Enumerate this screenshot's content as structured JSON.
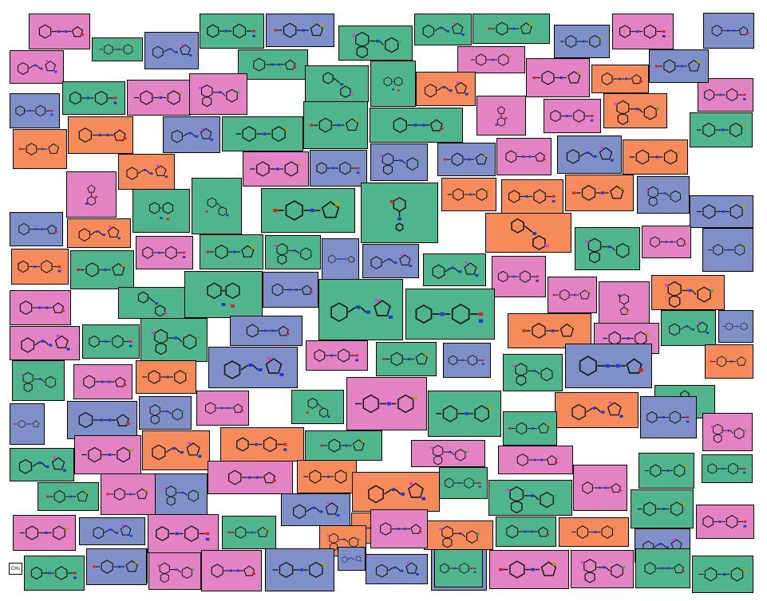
{
  "palette": {
    "pink": "#e383c4",
    "green": "#4fb58c",
    "blue": "#7f8fc8",
    "orange": "#f58a5b"
  },
  "marker_label": "CH₃",
  "tiles": [
    {
      "c": "pink",
      "t": 0,
      "o": "h"
    },
    {
      "c": "green",
      "t": 1,
      "o": "h"
    },
    {
      "c": "blue",
      "t": 2,
      "o": "h"
    },
    {
      "c": "green",
      "t": 3,
      "o": "h"
    },
    {
      "c": "blue",
      "t": 4,
      "o": "h"
    },
    {
      "c": "green",
      "t": 5,
      "o": "h"
    },
    {
      "c": "green",
      "t": 2,
      "o": "h"
    },
    {
      "c": "green",
      "t": 4,
      "o": "h"
    },
    {
      "c": "blue",
      "t": 1,
      "o": "h"
    },
    {
      "c": "pink",
      "t": 3,
      "o": "h"
    },
    {
      "c": "blue",
      "t": 0,
      "o": "h"
    },
    {
      "c": "pink",
      "t": 2,
      "o": "h"
    },
    {
      "c": "green",
      "t": 0,
      "o": "h"
    },
    {
      "c": "pink",
      "t": 1,
      "o": "h"
    },
    {
      "c": "pink",
      "t": 4,
      "o": "h"
    },
    {
      "c": "pink",
      "t": 3,
      "o": "h"
    },
    {
      "c": "green",
      "t": 5,
      "o": "v"
    },
    {
      "c": "green",
      "t": 1,
      "o": "v"
    },
    {
      "c": "orange",
      "t": 2,
      "o": "h"
    },
    {
      "c": "green",
      "t": 3,
      "o": "h"
    },
    {
      "c": "orange",
      "t": 0,
      "o": "h"
    },
    {
      "c": "blue",
      "t": 4,
      "o": "h"
    },
    {
      "c": "pink",
      "t": 1,
      "o": "h"
    },
    {
      "c": "blue",
      "t": 3,
      "o": "h"
    },
    {
      "c": "pink",
      "t": 5,
      "o": "h"
    },
    {
      "c": "blue",
      "t": 2,
      "o": "h"
    },
    {
      "c": "green",
      "t": 1,
      "o": "h"
    },
    {
      "c": "green",
      "t": 4,
      "o": "h"
    },
    {
      "c": "green",
      "t": 0,
      "o": "h"
    },
    {
      "c": "pink",
      "t": 2,
      "o": "v"
    },
    {
      "c": "pink",
      "t": 3,
      "o": "h"
    },
    {
      "c": "orange",
      "t": 5,
      "o": "h"
    },
    {
      "c": "green",
      "t": 1,
      "o": "h"
    },
    {
      "c": "orange",
      "t": 4,
      "o": "h"
    },
    {
      "c": "orange",
      "t": 0,
      "o": "h"
    },
    {
      "c": "pink",
      "t": 2,
      "o": "v"
    },
    {
      "c": "pink",
      "t": 1,
      "o": "h"
    },
    {
      "c": "blue",
      "t": 3,
      "o": "h"
    },
    {
      "c": "blue",
      "t": 5,
      "o": "h"
    },
    {
      "c": "blue",
      "t": 4,
      "o": "h"
    },
    {
      "c": "pink",
      "t": 0,
      "o": "h"
    },
    {
      "c": "blue",
      "t": 2,
      "o": "h"
    },
    {
      "c": "orange",
      "t": 1,
      "o": "h"
    },
    {
      "c": "green",
      "t": 3,
      "o": "v"
    },
    {
      "c": "green",
      "t": 5,
      "o": "v"
    },
    {
      "c": "green",
      "t": 4,
      "o": "h"
    },
    {
      "c": "green",
      "t": 0,
      "o": "v"
    },
    {
      "c": "orange",
      "t": 2,
      "o": "h"
    },
    {
      "c": "orange",
      "t": 1,
      "o": "h"
    },
    {
      "c": "orange",
      "t": 3,
      "o": "h"
    },
    {
      "c": "orange",
      "t": 4,
      "o": "h"
    },
    {
      "c": "blue",
      "t": 5,
      "o": "h"
    },
    {
      "c": "blue",
      "t": 0,
      "o": "h"
    },
    {
      "c": "orange",
      "t": 2,
      "o": "h"
    },
    {
      "c": "blue",
      "t": 1,
      "o": "h"
    },
    {
      "c": "pink",
      "t": 3,
      "o": "h"
    },
    {
      "c": "green",
      "t": 4,
      "o": "h"
    },
    {
      "c": "green",
      "t": 5,
      "o": "h"
    },
    {
      "c": "blue",
      "t": 0,
      "o": "h"
    },
    {
      "c": "blue",
      "t": 2,
      "o": "h"
    },
    {
      "c": "orange",
      "t": 1,
      "o": "v"
    },
    {
      "c": "orange",
      "t": 3,
      "o": "h"
    },
    {
      "c": "green",
      "t": 4,
      "o": "h"
    },
    {
      "c": "green",
      "t": 5,
      "o": "h"
    },
    {
      "c": "pink",
      "t": 0,
      "o": "h"
    },
    {
      "c": "blue",
      "t": 1,
      "o": "h"
    },
    {
      "c": "green",
      "t": 2,
      "o": "h"
    },
    {
      "c": "pink",
      "t": 3,
      "o": "h"
    },
    {
      "c": "pink",
      "t": 4,
      "o": "h"
    },
    {
      "c": "green",
      "t": 5,
      "o": "v"
    },
    {
      "c": "blue",
      "t": 0,
      "o": "h"
    },
    {
      "c": "green",
      "t": 1,
      "o": "v"
    },
    {
      "c": "green",
      "t": 2,
      "o": "h"
    },
    {
      "c": "green",
      "t": 3,
      "o": "h"
    },
    {
      "c": "pink",
      "t": 4,
      "o": "v"
    },
    {
      "c": "orange",
      "t": 5,
      "o": "h"
    },
    {
      "c": "pink",
      "t": 0,
      "o": "h"
    },
    {
      "c": "blue",
      "t": 1,
      "o": "h"
    },
    {
      "c": "pink",
      "t": 2,
      "o": "h"
    },
    {
      "c": "green",
      "t": 3,
      "o": "h"
    },
    {
      "c": "orange",
      "t": 4,
      "o": "h"
    },
    {
      "c": "green",
      "t": 5,
      "o": "h"
    },
    {
      "c": "blue",
      "t": 0,
      "o": "h"
    },
    {
      "c": "pink",
      "t": 1,
      "o": "h"
    },
    {
      "c": "green",
      "t": 2,
      "o": "h"
    },
    {
      "c": "blue",
      "t": 3,
      "o": "h"
    },
    {
      "c": "orange",
      "t": 4,
      "o": "h"
    },
    {
      "c": "green",
      "t": 5,
      "o": "h"
    },
    {
      "c": "pink",
      "t": 0,
      "o": "h"
    },
    {
      "c": "orange",
      "t": 1,
      "o": "h"
    },
    {
      "c": "blue",
      "t": 2,
      "o": "h"
    },
    {
      "c": "pink",
      "t": 3,
      "o": "h"
    },
    {
      "c": "green",
      "t": 4,
      "o": "h"
    },
    {
      "c": "green",
      "t": 5,
      "o": "h"
    },
    {
      "c": "blue",
      "t": 0,
      "o": "h"
    },
    {
      "c": "pink",
      "t": 1,
      "o": "h"
    },
    {
      "c": "green",
      "t": 2,
      "o": "v"
    },
    {
      "c": "green",
      "t": 3,
      "o": "v"
    },
    {
      "c": "blue",
      "t": 4,
      "o": "h"
    },
    {
      "c": "blue",
      "t": 5,
      "o": "h"
    },
    {
      "c": "pink",
      "t": 0,
      "o": "h"
    },
    {
      "c": "green",
      "t": 1,
      "o": "h"
    },
    {
      "c": "orange",
      "t": 2,
      "o": "h"
    },
    {
      "c": "blue",
      "t": 3,
      "o": "h"
    },
    {
      "c": "green",
      "t": 4,
      "o": "h"
    },
    {
      "c": "pink",
      "t": 5,
      "o": "h"
    },
    {
      "c": "blue",
      "t": 0,
      "o": "h"
    },
    {
      "c": "pink",
      "t": 1,
      "o": "h"
    },
    {
      "c": "orange",
      "t": 2,
      "o": "h"
    },
    {
      "c": "orange",
      "t": 3,
      "o": "h"
    },
    {
      "c": "green",
      "t": 4,
      "o": "h"
    },
    {
      "c": "pink",
      "t": 5,
      "o": "h"
    },
    {
      "c": "pink",
      "t": 0,
      "o": "h"
    },
    {
      "c": "green",
      "t": 1,
      "o": "h"
    },
    {
      "c": "green",
      "t": 2,
      "o": "h"
    },
    {
      "c": "green",
      "t": 3,
      "o": "h"
    },
    {
      "c": "pink",
      "t": 4,
      "o": "h"
    },
    {
      "c": "blue",
      "t": 5,
      "o": "h"
    },
    {
      "c": "pink",
      "t": 0,
      "o": "h"
    },
    {
      "c": "orange",
      "t": 1,
      "o": "h"
    },
    {
      "c": "orange",
      "t": 2,
      "o": "h"
    },
    {
      "c": "green",
      "t": 3,
      "o": "h"
    },
    {
      "c": "green",
      "t": 4,
      "o": "h"
    },
    {
      "c": "green",
      "t": 5,
      "o": "h"
    },
    {
      "c": "pink",
      "t": 0,
      "o": "h"
    },
    {
      "c": "green",
      "t": 1,
      "o": "h"
    },
    {
      "c": "blue",
      "t": 2,
      "o": "h"
    },
    {
      "c": "pink",
      "t": 3,
      "o": "h"
    },
    {
      "c": "orange",
      "t": 4,
      "o": "h"
    },
    {
      "c": "orange",
      "t": 5,
      "o": "h"
    },
    {
      "c": "green",
      "t": 0,
      "o": "h"
    },
    {
      "c": "pink",
      "t": 1,
      "o": "h"
    },
    {
      "c": "blue",
      "t": 2,
      "o": "h"
    },
    {
      "c": "pink",
      "t": 3,
      "o": "h"
    },
    {
      "c": "green",
      "t": 4,
      "o": "h"
    },
    {
      "c": "orange",
      "t": 5,
      "o": "h"
    },
    {
      "c": "pink",
      "t": 0,
      "o": "h"
    },
    {
      "c": "orange",
      "t": 1,
      "o": "h"
    },
    {
      "c": "blue",
      "t": 2,
      "o": "h"
    },
    {
      "c": "green",
      "t": 3,
      "o": "h"
    },
    {
      "c": "pink",
      "t": 4,
      "o": "h"
    },
    {
      "c": "pink",
      "t": 5,
      "o": "h"
    },
    {
      "c": "pink",
      "t": 0,
      "o": "h"
    },
    {
      "c": "blue",
      "t": 1,
      "o": "h"
    },
    {
      "c": "blue",
      "t": 2,
      "o": "h"
    },
    {
      "c": "blue",
      "t": 3,
      "o": "h"
    },
    {
      "c": "pink",
      "t": 4,
      "o": "h"
    },
    {
      "c": "pink",
      "t": 5,
      "o": "h"
    },
    {
      "c": "green",
      "t": 0,
      "o": "h"
    },
    {
      "c": "green",
      "t": 1,
      "o": "h"
    },
    {
      "c": "blue",
      "t": 2,
      "o": "h"
    },
    {
      "c": "green",
      "t": 3,
      "o": "h"
    },
    {
      "c": "blue",
      "t": 4,
      "o": "h"
    },
    {
      "c": "green",
      "t": 5,
      "o": "h"
    },
    {
      "c": "blue",
      "t": 0,
      "o": "h"
    }
  ]
}
